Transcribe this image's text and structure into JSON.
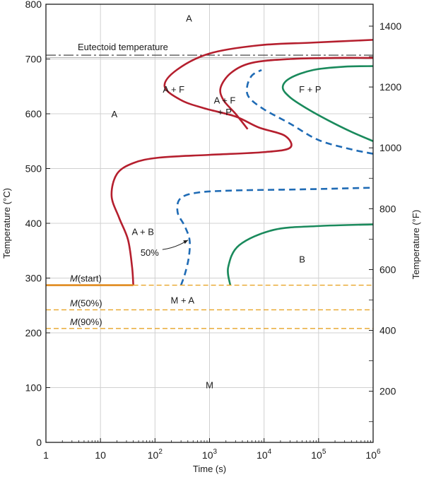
{
  "chart_data": {
    "type": "line",
    "title": "",
    "xlabel": "Time (s)",
    "ylabel": "Temperature (°C)",
    "y2label": "Temperature (°F)",
    "xscale": "log",
    "xlim": [
      1,
      1000000
    ],
    "ylim": [
      0,
      800
    ],
    "grid": true,
    "x_ticks": [
      {
        "value": 1,
        "label": "1",
        "sup": ""
      },
      {
        "value": 10,
        "label": "10",
        "sup": ""
      },
      {
        "value": 100,
        "label": "10",
        "sup": "2"
      },
      {
        "value": 1000,
        "label": "10",
        "sup": "3"
      },
      {
        "value": 10000,
        "label": "10",
        "sup": "4"
      },
      {
        "value": 100000,
        "label": "10",
        "sup": "5"
      },
      {
        "value": 1000000,
        "label": "10",
        "sup": "6"
      }
    ],
    "y_ticks": [
      {
        "value": 0,
        "label": "0"
      },
      {
        "value": 100,
        "label": "100"
      },
      {
        "value": 200,
        "label": "200"
      },
      {
        "value": 300,
        "label": "300"
      },
      {
        "value": 400,
        "label": "400"
      },
      {
        "value": 500,
        "label": "500"
      },
      {
        "value": 600,
        "label": "600"
      },
      {
        "value": 700,
        "label": "700"
      },
      {
        "value": 800,
        "label": "800"
      }
    ],
    "y2_ticks": [
      {
        "value": 200,
        "label": "200"
      },
      {
        "value": 400,
        "label": "400"
      },
      {
        "value": 600,
        "label": "600"
      },
      {
        "value": 800,
        "label": "800"
      },
      {
        "value": 1000,
        "label": "1000"
      },
      {
        "value": 1200,
        "label": "1200"
      },
      {
        "value": 1400,
        "label": "1400"
      }
    ],
    "y2_minor_step": 100,
    "eutectoid": {
      "temperature": 707,
      "label": "Eutectoid temperature"
    },
    "martensite_lines": [
      {
        "name": "m-start",
        "label_m": "M",
        "label_rest": "(start)",
        "temperature": 287,
        "x_start": 1,
        "x_end": 1000000,
        "solid_until": 40
      },
      {
        "name": "m-50",
        "label_m": "M",
        "label_rest": "(50%)",
        "temperature": 242,
        "x_start": 1,
        "x_end": 1000000,
        "solid_until": 1
      },
      {
        "name": "m-90",
        "label_m": "M",
        "label_rest": "(90%)",
        "temperature": 208,
        "x_start": 1,
        "x_end": 1000000,
        "solid_until": 1
      }
    ],
    "series": [
      {
        "name": "ferrite-start",
        "style": "solid",
        "color": "#b51f2e",
        "points": [
          [
            40,
            287
          ],
          [
            38,
            320
          ],
          [
            32,
            370
          ],
          [
            22,
            410
          ],
          [
            16,
            450
          ],
          [
            20,
            490
          ],
          [
            40,
            510
          ],
          [
            120,
            520
          ],
          [
            1000,
            525
          ],
          [
            10000,
            530
          ],
          [
            30000,
            538
          ],
          [
            24000,
            560
          ],
          [
            8000,
            575
          ],
          [
            3000,
            595
          ],
          [
            800,
            610
          ],
          [
            300,
            625
          ],
          [
            150,
            650
          ],
          [
            250,
            680
          ],
          [
            1000,
            710
          ],
          [
            8000,
            725
          ],
          [
            80000,
            730
          ],
          [
            1000000,
            735
          ]
        ]
      },
      {
        "name": "ferrite-finish",
        "style": "solid",
        "color": "#b51f2e",
        "points": [
          [
            5000,
            572
          ],
          [
            3000,
            600
          ],
          [
            1800,
            625
          ],
          [
            1600,
            648
          ],
          [
            2500,
            675
          ],
          [
            6000,
            693
          ],
          [
            30000,
            700
          ],
          [
            200000,
            702
          ],
          [
            1000000,
            702
          ]
        ]
      },
      {
        "name": "pearlite-start",
        "style": "dashed",
        "color": "#1f6bb5",
        "points": [
          [
            1000000,
            527
          ],
          [
            400000,
            535
          ],
          [
            100000,
            552
          ],
          [
            30000,
            582
          ],
          [
            10000,
            608
          ],
          [
            5300,
            630
          ],
          [
            4900,
            650
          ],
          [
            6000,
            670
          ],
          [
            9000,
            680
          ]
        ]
      },
      {
        "name": "pearlite-finish",
        "style": "solid",
        "color": "#1a8a5c",
        "points": [
          [
            1000000,
            550
          ],
          [
            400000,
            567
          ],
          [
            150000,
            588
          ],
          [
            60000,
            610
          ],
          [
            30000,
            630
          ],
          [
            22000,
            648
          ],
          [
            30000,
            665
          ],
          [
            80000,
            680
          ],
          [
            300000,
            686
          ],
          [
            1000000,
            687
          ]
        ]
      },
      {
        "name": "bainite-start",
        "style": "dashed",
        "color": "#1f6bb5",
        "points": [
          [
            300,
            287
          ],
          [
            360,
            310
          ],
          [
            420,
            340
          ],
          [
            430,
            370
          ],
          [
            350,
            395
          ],
          [
            260,
            420
          ],
          [
            290,
            445
          ],
          [
            600,
            456
          ],
          [
            3000,
            460
          ],
          [
            50000,
            462
          ],
          [
            1000000,
            465
          ]
        ]
      },
      {
        "name": "bainite-finish",
        "style": "solid",
        "color": "#1a8a5c",
        "points": [
          [
            2400,
            287
          ],
          [
            2200,
            320
          ],
          [
            3500,
            360
          ],
          [
            15000,
            388
          ],
          [
            100000,
            395
          ],
          [
            1000000,
            398
          ]
        ]
      }
    ],
    "annotations": [
      {
        "name": "region-a-top",
        "text": "A",
        "x": 420,
        "y": 775
      },
      {
        "name": "region-a-left",
        "text": "A",
        "x": 18,
        "y": 600
      },
      {
        "name": "region-a-f",
        "text": "A + F",
        "x": 220,
        "y": 645
      },
      {
        "name": "region-a-f-p-line1",
        "text": "A + F",
        "x": 1900,
        "y": 625
      },
      {
        "name": "region-a-f-p-line2",
        "text": "+ P",
        "x": 1900,
        "y": 604
      },
      {
        "name": "region-f-p",
        "text": "F + P",
        "x": 70000,
        "y": 645
      },
      {
        "name": "region-a-b",
        "text": "A + B",
        "x": 60,
        "y": 385
      },
      {
        "name": "region-b",
        "text": "B",
        "x": 50000,
        "y": 335
      },
      {
        "name": "region-m-a",
        "text": "M + A",
        "x": 320,
        "y": 260
      },
      {
        "name": "region-m",
        "text": "M",
        "x": 1000,
        "y": 105
      }
    ],
    "callout": {
      "text": "50%",
      "text_x": 80,
      "text_y": 347,
      "arrow_to_x": 430,
      "arrow_to_y": 372
    }
  },
  "colors": {
    "ferrite": "#b51f2e",
    "pearlite_start": "#1f6bb5",
    "finish": "#1a8a5c",
    "martensite": "#e8a427",
    "martensite_start_solid": "#e08a1e",
    "grid": "#d0d0d0",
    "axis": "#1a1a1a"
  }
}
